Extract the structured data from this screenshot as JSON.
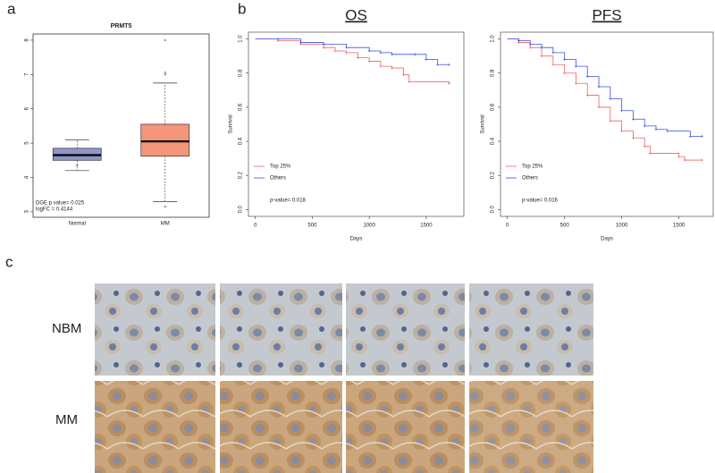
{
  "figure": {
    "panel_labels": [
      "a",
      "b",
      "c"
    ],
    "row_labels": [
      "NBM",
      "MM"
    ]
  },
  "chart_data": [
    {
      "type": "box",
      "title": "PRMT5",
      "categories": [
        "Normal",
        "MM"
      ],
      "colors": [
        "#8e96c8",
        "#f4967a"
      ],
      "boxes": [
        {
          "min": 4.2,
          "q1": 4.5,
          "median": 4.65,
          "q3": 4.85,
          "max": 5.1,
          "outliers": [
            4.35
          ]
        },
        {
          "min": 3.3,
          "q1": 4.62,
          "median": 5.05,
          "q3": 5.55,
          "max": 6.75,
          "outliers": [
            7.0,
            7.05,
            8.0,
            3.15
          ]
        }
      ],
      "ylim": [
        2.84,
        8.18
      ],
      "yticks": [
        3,
        4,
        5,
        6,
        7,
        8
      ],
      "xlim": [
        0.5,
        2.5
      ],
      "annotations": [
        "DGE p value= 0.025",
        "logFC = 0.4144"
      ]
    },
    {
      "type": "line",
      "title": "OS",
      "xlabel": "Days",
      "ylabel": "Survival",
      "xlim": [
        -60,
        1830
      ],
      "ylim": [
        -0.04,
        1.04
      ],
      "xticks": [
        0,
        500,
        1000,
        1500
      ],
      "yticks": [
        {
          "value": 0,
          "label": "0.0"
        },
        0.2,
        0.4,
        0.6,
        0.8,
        {
          "value": 1,
          "label": "1.0"
        }
      ],
      "series": [
        {
          "name": "Top 25%",
          "color": "#f06060",
          "x": [
            0,
            200,
            400,
            600,
            700,
            800,
            900,
            1000,
            1100,
            1200,
            1300,
            1350,
            1700
          ],
          "values": [
            1,
            0.99,
            0.97,
            0.95,
            0.93,
            0.92,
            0.89,
            0.87,
            0.84,
            0.83,
            0.79,
            0.75,
            0.74
          ]
        },
        {
          "name": "Others",
          "color": "#3a4ee8",
          "x": [
            0,
            200,
            400,
            600,
            800,
            1000,
            1100,
            1200,
            1400,
            1500,
            1600,
            1700
          ],
          "values": [
            1,
            1,
            0.98,
            0.97,
            0.95,
            0.93,
            0.92,
            0.91,
            0.91,
            0.88,
            0.85,
            0.85
          ]
        }
      ],
      "annotation": "p-value= 0.018"
    },
    {
      "type": "line",
      "title": "PFS",
      "xlabel": "Days",
      "ylabel": "Survival",
      "xlim": [
        -60,
        1800
      ],
      "ylim": [
        -0.04,
        1.04
      ],
      "xticks": [
        0,
        500,
        1000,
        1500
      ],
      "yticks": [
        {
          "value": 0,
          "label": "0.0"
        },
        0.2,
        0.4,
        0.6,
        0.8,
        {
          "value": 1,
          "label": "1.0"
        }
      ],
      "series": [
        {
          "name": "Top 25%",
          "color": "#f06060",
          "x": [
            0,
            100,
            200,
            300,
            400,
            500,
            600,
            700,
            800,
            900,
            1000,
            1100,
            1200,
            1250,
            1500,
            1550,
            1700
          ],
          "values": [
            1,
            0.98,
            0.95,
            0.9,
            0.85,
            0.8,
            0.74,
            0.67,
            0.6,
            0.52,
            0.46,
            0.42,
            0.37,
            0.33,
            0.31,
            0.29,
            0.29
          ]
        },
        {
          "name": "Others",
          "color": "#3a4ee8",
          "x": [
            0,
            100,
            200,
            300,
            400,
            500,
            600,
            700,
            800,
            900,
            1000,
            1100,
            1200,
            1300,
            1400,
            1600,
            1700
          ],
          "values": [
            1,
            0.99,
            0.97,
            0.95,
            0.92,
            0.88,
            0.84,
            0.78,
            0.72,
            0.65,
            0.58,
            0.53,
            0.49,
            0.47,
            0.46,
            0.43,
            0.43
          ]
        }
      ],
      "annotation": "p-value= 0.016"
    }
  ]
}
